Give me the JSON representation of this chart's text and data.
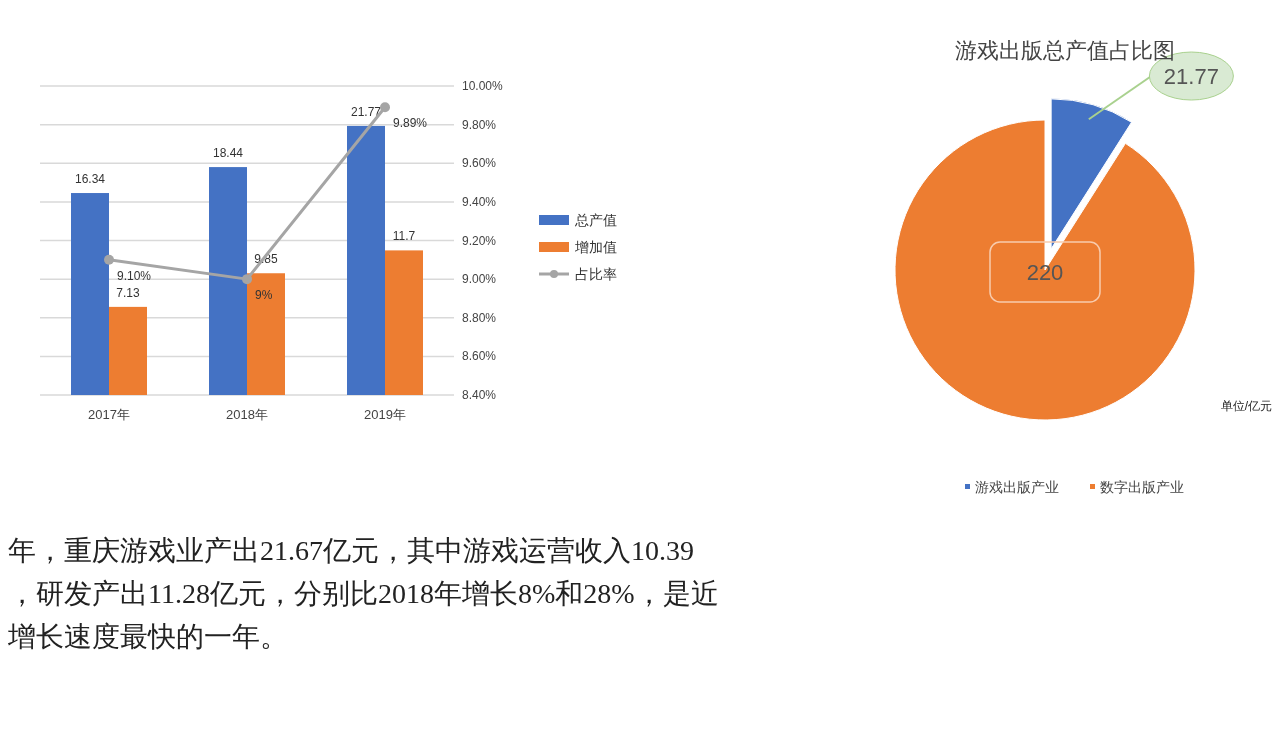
{
  "chart_data": [
    {
      "type": "bar",
      "categories": [
        "2017年",
        "2018年",
        "2019年"
      ],
      "ylim": [
        0,
        25
      ],
      "y2lim": [
        8.4,
        10
      ],
      "y2ticks": [
        {
          "value": 8.4,
          "label": "8.40%"
        },
        {
          "value": 8.6,
          "label": "8.60%"
        },
        {
          "value": 8.8,
          "label": "8.80%"
        },
        {
          "value": 9.0,
          "label": "9.00%"
        },
        {
          "value": 9.2,
          "label": "9.20%"
        },
        {
          "value": 9.4,
          "label": "9.40%"
        },
        {
          "value": 9.6,
          "label": "9.60%"
        },
        {
          "value": 9.8,
          "label": "9.80%"
        },
        {
          "value": 10.0,
          "label": "10.00%"
        }
      ],
      "grid": true,
      "legend": "right",
      "data_labels": true,
      "series": [
        {
          "name": "总产值",
          "color": "#4472c4",
          "values": [
            16.34,
            18.44,
            21.77
          ]
        },
        {
          "name": "增加值",
          "color": "#ed7d31",
          "values": [
            7.13,
            9.85,
            11.7
          ]
        },
        {
          "name": "占比率",
          "type": "line",
          "axis": "y2",
          "color": "#a5a5a5",
          "marker": "circle",
          "values": [
            9.1,
            9.0,
            9.89
          ],
          "value_labels": [
            "9.10%",
            "9%",
            "9.89%"
          ]
        }
      ],
      "annotations": [
        "年，重庆游戏业产出21.67亿元，其中游戏运营收入10.39",
        "，研发产出11.28亿元，分别比2018年增长8%和28%，是近",
        "增长速度最快的一年。"
      ]
    },
    {
      "type": "pie",
      "title": "游戏出版总产值占比图",
      "categories": [
        "游戏出版产业",
        "数字出版产业"
      ],
      "values": [
        21.77,
        220
      ],
      "colors": [
        "#4472c4",
        "#ed7d31"
      ],
      "data_labels": true,
      "legend": "bottom",
      "annotations": [
        "单位/亿元"
      ]
    }
  ]
}
